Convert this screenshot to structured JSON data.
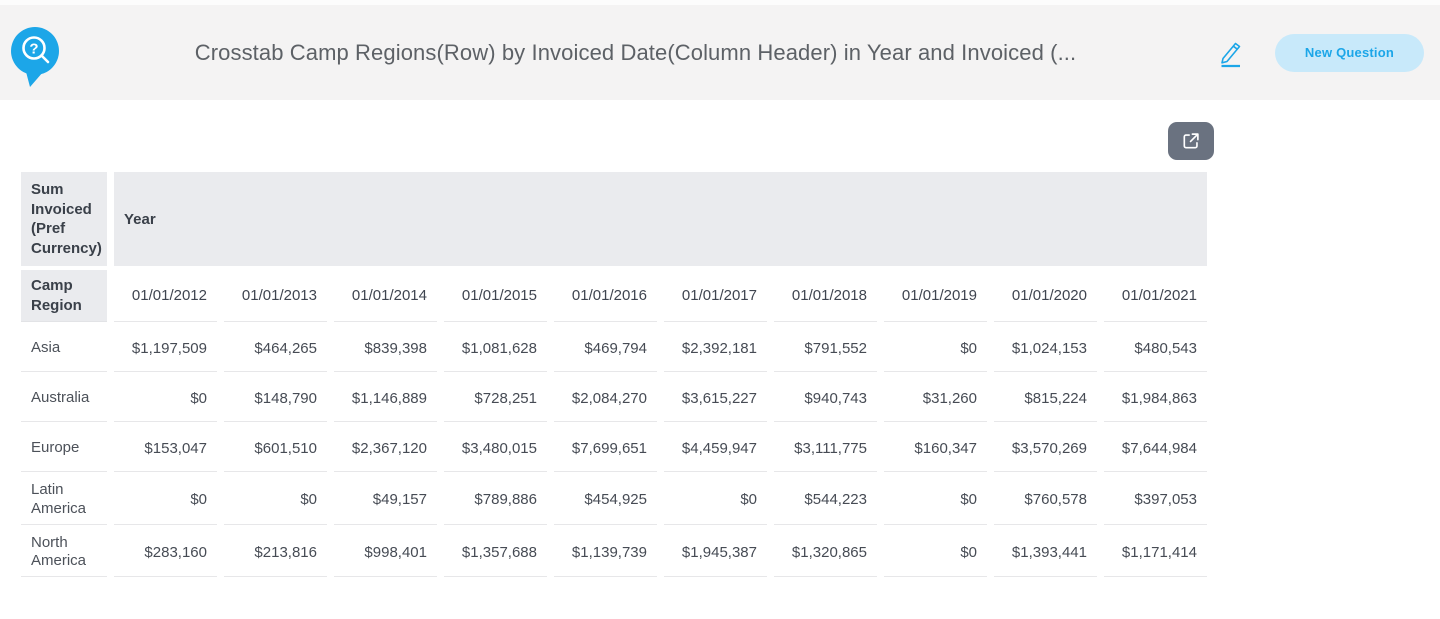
{
  "header": {
    "title": "Crosstab Camp Regions(Row) by Invoiced Date(Column Header) in Year and Invoiced (...",
    "new_question_label": "New Question"
  },
  "icons": {
    "logo": "speech-bubble-search-question-icon",
    "edit": "pencil-icon",
    "export": "open-in-new-icon"
  },
  "colors": {
    "accent_blue": "#1ca6e8",
    "button_bg": "#c8e9fa",
    "header_bar_bg": "#f4f3f3",
    "table_header_bg": "#eaebee",
    "export_button_bg": "#6a7280",
    "row_border": "#e7e7e9",
    "text_dark": "#3a4049",
    "text_body": "#4a4f58"
  },
  "table": {
    "measure_label": "Sum Invoiced (Pref Currency)",
    "column_dimension_label": "Year",
    "row_dimension_label": "Camp Region",
    "columns": [
      "01/01/2012",
      "01/01/2013",
      "01/01/2014",
      "01/01/2015",
      "01/01/2016",
      "01/01/2017",
      "01/01/2018",
      "01/01/2019",
      "01/01/2020",
      "01/01/2021"
    ],
    "rows": [
      {
        "label": "Asia",
        "values": [
          "$1,197,509",
          "$464,265",
          "$839,398",
          "$1,081,628",
          "$469,794",
          "$2,392,181",
          "$791,552",
          "$0",
          "$1,024,153",
          "$480,543"
        ]
      },
      {
        "label": "Australia",
        "values": [
          "$0",
          "$148,790",
          "$1,146,889",
          "$728,251",
          "$2,084,270",
          "$3,615,227",
          "$940,743",
          "$31,260",
          "$815,224",
          "$1,984,863"
        ]
      },
      {
        "label": "Europe",
        "values": [
          "$153,047",
          "$601,510",
          "$2,367,120",
          "$3,480,015",
          "$7,699,651",
          "$4,459,947",
          "$3,111,775",
          "$160,347",
          "$3,570,269",
          "$7,644,984"
        ]
      },
      {
        "label": "Latin America",
        "values": [
          "$0",
          "$0",
          "$49,157",
          "$789,886",
          "$454,925",
          "$0",
          "$544,223",
          "$0",
          "$760,578",
          "$397,053"
        ]
      },
      {
        "label": "North America",
        "values": [
          "$283,160",
          "$213,816",
          "$998,401",
          "$1,357,688",
          "$1,139,739",
          "$1,945,387",
          "$1,320,865",
          "$0",
          "$1,393,441",
          "$1,171,414"
        ]
      }
    ]
  }
}
